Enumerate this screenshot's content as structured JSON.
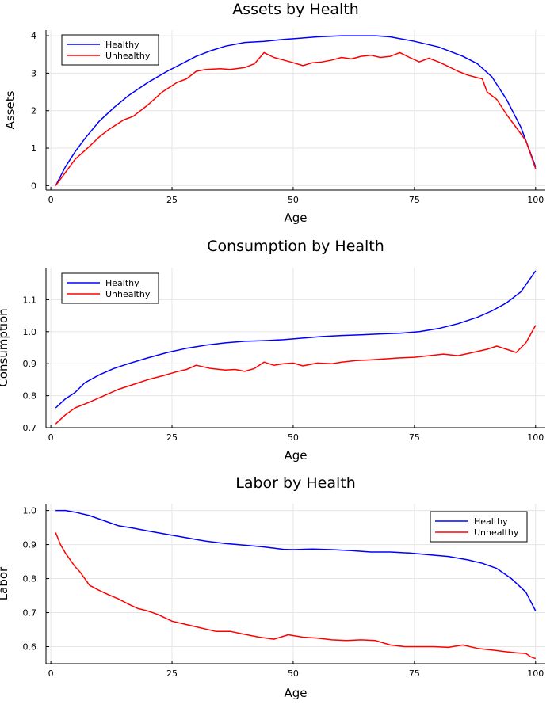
{
  "colors": {
    "healthy": "#0000ff",
    "unhealthy": "#ff0000"
  },
  "chart_data": [
    {
      "type": "line",
      "title": "Assets by Health",
      "xlabel": "Age",
      "ylabel": "Assets",
      "xlim": [
        -1,
        102
      ],
      "ylim": [
        -0.12,
        4.15
      ],
      "xticks": [
        0,
        25,
        50,
        75,
        100
      ],
      "xtick_labels": [
        "0",
        "25",
        "50",
        "75",
        "100"
      ],
      "yticks": [
        0,
        1,
        2,
        3,
        4
      ],
      "ytick_labels": [
        "0",
        "1",
        "2",
        "3",
        "4"
      ],
      "grid": true,
      "legend_position": "top-left",
      "series": [
        {
          "name": "Healthy",
          "color": "#0000ff",
          "x": [
            1,
            3,
            5,
            7,
            10,
            13,
            16,
            20,
            24,
            27,
            30,
            33,
            36,
            40,
            44,
            48,
            50,
            55,
            60,
            63,
            67,
            70,
            75,
            80,
            85,
            88,
            91,
            94,
            97,
            100
          ],
          "y": [
            0,
            0.5,
            0.9,
            1.25,
            1.72,
            2.08,
            2.4,
            2.75,
            3.05,
            3.25,
            3.45,
            3.6,
            3.72,
            3.82,
            3.85,
            3.9,
            3.92,
            3.97,
            4.0,
            4.0,
            4.0,
            3.97,
            3.85,
            3.7,
            3.45,
            3.25,
            2.9,
            2.3,
            1.55,
            0.5
          ]
        },
        {
          "name": "Unhealthy",
          "color": "#ff0000",
          "x": [
            1,
            3,
            5,
            8,
            10,
            12,
            15,
            17,
            20,
            23,
            26,
            28,
            30,
            32,
            35,
            37,
            40,
            42,
            44,
            46,
            48,
            50,
            52,
            54,
            56,
            58,
            60,
            62,
            64,
            66,
            68,
            70,
            72,
            74,
            76,
            78,
            80,
            82,
            84,
            86,
            88,
            89,
            90,
            92,
            94,
            96,
            98,
            100
          ],
          "y": [
            0,
            0.35,
            0.7,
            1.05,
            1.3,
            1.5,
            1.75,
            1.85,
            2.15,
            2.5,
            2.75,
            2.85,
            3.05,
            3.1,
            3.12,
            3.1,
            3.15,
            3.25,
            3.55,
            3.42,
            3.35,
            3.28,
            3.2,
            3.28,
            3.3,
            3.35,
            3.42,
            3.38,
            3.45,
            3.48,
            3.42,
            3.45,
            3.55,
            3.42,
            3.3,
            3.4,
            3.3,
            3.18,
            3.05,
            2.95,
            2.88,
            2.85,
            2.5,
            2.3,
            1.9,
            1.55,
            1.2,
            0.45
          ]
        }
      ]
    },
    {
      "type": "line",
      "title": "Consumption by Health",
      "xlabel": "Age",
      "ylabel": "Consumption",
      "xlim": [
        -1,
        102
      ],
      "ylim": [
        0.7,
        1.2
      ],
      "xticks": [
        0,
        25,
        50,
        75,
        100
      ],
      "xtick_labels": [
        "0",
        "25",
        "50",
        "75",
        "100"
      ],
      "yticks": [
        0.7,
        0.8,
        0.9,
        1.0,
        1.1
      ],
      "ytick_labels": [
        "0.7",
        "0.8",
        "0.9",
        "1.0",
        "1.1"
      ],
      "grid": true,
      "legend_position": "top-left",
      "series": [
        {
          "name": "Healthy",
          "color": "#0000ff",
          "x": [
            1,
            3,
            5,
            7,
            10,
            13,
            16,
            20,
            24,
            28,
            32,
            36,
            40,
            44,
            48,
            52,
            56,
            60,
            64,
            68,
            72,
            76,
            80,
            84,
            88,
            91,
            94,
            97,
            100
          ],
          "y": [
            0.762,
            0.79,
            0.81,
            0.84,
            0.865,
            0.885,
            0.9,
            0.918,
            0.935,
            0.948,
            0.958,
            0.965,
            0.97,
            0.972,
            0.975,
            0.98,
            0.985,
            0.988,
            0.99,
            0.993,
            0.995,
            1.0,
            1.01,
            1.025,
            1.045,
            1.065,
            1.09,
            1.125,
            1.19
          ]
        },
        {
          "name": "Unhealthy",
          "color": "#ff0000",
          "x": [
            1,
            3,
            5,
            8,
            11,
            14,
            17,
            20,
            23,
            26,
            28,
            30,
            33,
            36,
            38,
            40,
            42,
            44,
            46,
            48,
            50,
            52,
            55,
            58,
            60,
            63,
            66,
            69,
            72,
            75,
            78,
            81,
            84,
            87,
            90,
            92,
            94,
            96,
            98,
            100
          ],
          "y": [
            0.712,
            0.74,
            0.762,
            0.78,
            0.8,
            0.82,
            0.835,
            0.85,
            0.862,
            0.875,
            0.882,
            0.895,
            0.885,
            0.88,
            0.882,
            0.876,
            0.885,
            0.905,
            0.895,
            0.9,
            0.902,
            0.893,
            0.902,
            0.9,
            0.905,
            0.91,
            0.912,
            0.915,
            0.918,
            0.92,
            0.925,
            0.93,
            0.925,
            0.935,
            0.945,
            0.955,
            0.945,
            0.935,
            0.965,
            1.02
          ]
        }
      ]
    },
    {
      "type": "line",
      "title": "Labor by Health",
      "xlabel": "Age",
      "ylabel": "Labor",
      "xlim": [
        -1,
        102
      ],
      "ylim": [
        0.55,
        1.02
      ],
      "xticks": [
        0,
        25,
        50,
        75,
        100
      ],
      "xtick_labels": [
        "0",
        "25",
        "50",
        "75",
        "100"
      ],
      "yticks": [
        0.6,
        0.7,
        0.8,
        0.9,
        1.0
      ],
      "ytick_labels": [
        "0.6",
        "0.7",
        "0.8",
        "0.9",
        "1.0"
      ],
      "grid": true,
      "legend_position": "top-right",
      "series": [
        {
          "name": "Healthy",
          "color": "#0000ff",
          "x": [
            1,
            3,
            5,
            8,
            11,
            14,
            17,
            20,
            24,
            28,
            32,
            36,
            40,
            44,
            48,
            50,
            54,
            58,
            62,
            66,
            70,
            74,
            78,
            82,
            86,
            89,
            92,
            95,
            98,
            100
          ],
          "y": [
            1.0,
            1.0,
            0.995,
            0.985,
            0.97,
            0.955,
            0.948,
            0.94,
            0.93,
            0.92,
            0.91,
            0.903,
            0.898,
            0.893,
            0.886,
            0.885,
            0.887,
            0.885,
            0.882,
            0.878,
            0.878,
            0.875,
            0.87,
            0.865,
            0.855,
            0.845,
            0.83,
            0.8,
            0.76,
            0.705
          ]
        },
        {
          "name": "Unhealthy",
          "color": "#ff0000",
          "x": [
            1,
            2,
            3,
            4,
            5,
            6,
            8,
            10,
            12,
            14,
            16,
            18,
            20,
            22,
            25,
            28,
            31,
            34,
            37,
            40,
            43,
            46,
            49,
            52,
            55,
            58,
            61,
            64,
            67,
            70,
            73,
            76,
            79,
            82,
            85,
            88,
            91,
            94,
            96,
            98,
            99,
            100
          ],
          "y": [
            0.935,
            0.9,
            0.875,
            0.855,
            0.835,
            0.82,
            0.78,
            0.765,
            0.752,
            0.74,
            0.725,
            0.712,
            0.705,
            0.695,
            0.675,
            0.665,
            0.655,
            0.645,
            0.645,
            0.636,
            0.628,
            0.622,
            0.635,
            0.628,
            0.625,
            0.62,
            0.618,
            0.62,
            0.618,
            0.605,
            0.6,
            0.6,
            0.6,
            0.598,
            0.605,
            0.595,
            0.59,
            0.585,
            0.582,
            0.58,
            0.57,
            0.565
          ]
        }
      ]
    }
  ]
}
